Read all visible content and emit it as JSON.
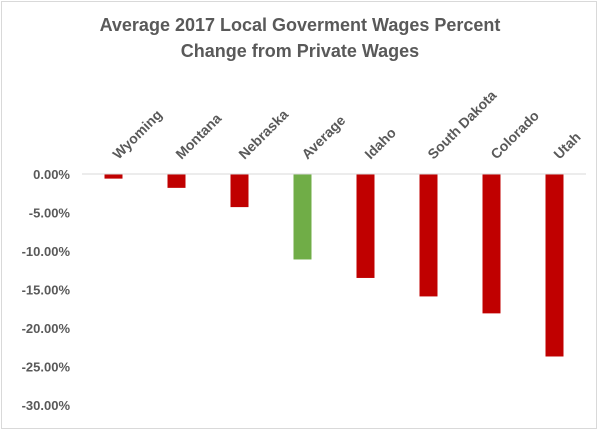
{
  "chart_data": {
    "type": "bar",
    "title_lines": [
      "Average 2017 Local Goverment Wages Percent",
      "Change from Private Wages"
    ],
    "categories": [
      "Wyoming",
      "Montana",
      "Nebraska",
      "Average",
      "Idaho",
      "South Dakota",
      "Colorado",
      "Utah"
    ],
    "values": [
      -0.6,
      -1.8,
      -4.3,
      -11.1,
      -13.5,
      -15.9,
      -18.1,
      -23.7
    ],
    "value_unit": "%",
    "ylim": [
      -30,
      0
    ],
    "yticks": [
      0,
      -5,
      -10,
      -15,
      -20,
      -25,
      -30
    ],
    "ytick_labels": [
      "0.00%",
      "-5.00%",
      "-10.00%",
      "-15.00%",
      "-20.00%",
      "-25.00%",
      "-30.00%"
    ],
    "xlabel": "",
    "ylabel": "",
    "grid": false,
    "legend": "none",
    "category_label_position": "top, rotated",
    "colors": {
      "bar": "#C00000",
      "highlight_bar": "#70AD47",
      "highlight_category": "Average",
      "axis": "#d9d9d9",
      "text": "#595959"
    }
  }
}
